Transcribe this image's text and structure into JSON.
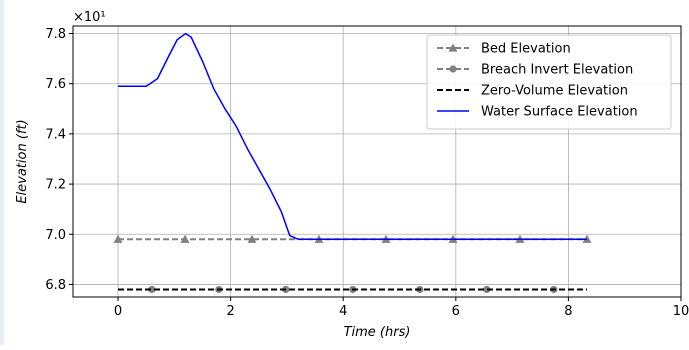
{
  "chart_data": {
    "type": "line",
    "xlabel": "Time (hrs)",
    "ylabel": "Elevation (ft)",
    "y_multiplier_label": "×10¹",
    "xlim": [
      -0.8,
      10.0
    ],
    "ylim": [
      6.75,
      7.83
    ],
    "xticks": [
      0,
      2,
      4,
      6,
      8,
      10
    ],
    "xtick_labels": [
      "0",
      "2",
      "4",
      "6",
      "8",
      "10"
    ],
    "yticks": [
      6.8,
      7.0,
      7.2,
      7.4,
      7.6,
      7.8
    ],
    "ytick_labels": [
      "6.8",
      "7.0",
      "7.2",
      "7.4",
      "7.6",
      "7.8"
    ],
    "grid": true,
    "legend_position": "top-right",
    "series": [
      {
        "name": "Bed Elevation",
        "color": "#808080",
        "line_style": "dashed",
        "marker": "triangle",
        "x": [
          0,
          8.33
        ],
        "y": [
          6.98,
          6.98
        ],
        "marker_x": [
          0,
          1.19,
          2.38,
          3.57,
          4.76,
          5.95,
          7.14,
          8.33
        ]
      },
      {
        "name": "Breach Invert Elevation",
        "color": "#808080",
        "line_style": "dashed",
        "marker": "circle",
        "x": [
          0,
          8.33
        ],
        "y": [
          6.78,
          6.78
        ],
        "marker_x": [
          0.6,
          1.79,
          2.98,
          4.17,
          5.36,
          6.55,
          7.74
        ]
      },
      {
        "name": "Zero-Volume Elevation",
        "color": "#000000",
        "line_style": "dashed",
        "marker": "none",
        "x": [
          0,
          8.33
        ],
        "y": [
          6.78,
          6.78
        ]
      },
      {
        "name": "Water Surface Elevation",
        "color": "#0000ff",
        "line_style": "solid",
        "marker": "none",
        "x": [
          0,
          0.5,
          0.7,
          0.9,
          1.05,
          1.2,
          1.3,
          1.5,
          1.7,
          1.9,
          2.1,
          2.3,
          2.5,
          2.7,
          2.9,
          3.05,
          3.2,
          3.5,
          8.33
        ],
        "y": [
          7.59,
          7.59,
          7.62,
          7.71,
          7.775,
          7.8,
          7.785,
          7.69,
          7.58,
          7.5,
          7.43,
          7.34,
          7.26,
          7.18,
          7.09,
          6.995,
          6.98,
          6.98,
          6.98
        ]
      }
    ]
  }
}
